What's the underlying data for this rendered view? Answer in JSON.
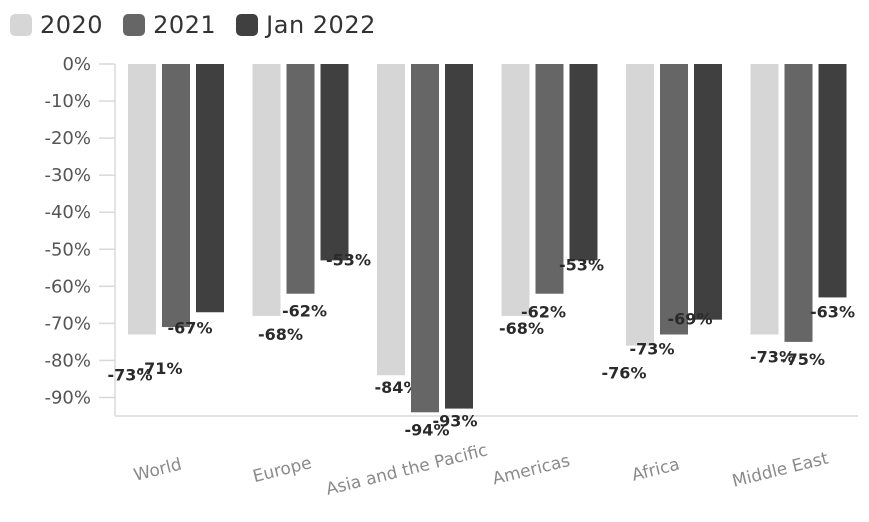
{
  "chart_data": {
    "type": "bar",
    "categories": [
      "World",
      "Europe",
      "Asia and the Pacific",
      "Americas",
      "Africa",
      "Middle East"
    ],
    "series": [
      {
        "name": "2020",
        "color": "#d6d6d6",
        "values": [
          -73,
          -68,
          -84,
          -68,
          -76,
          -73
        ]
      },
      {
        "name": "2021",
        "color": "#666666",
        "values": [
          -71,
          -62,
          -94,
          -62,
          -73,
          -75
        ]
      },
      {
        "name": "Jan 2022",
        "color": "#404040",
        "values": [
          -67,
          -53,
          -93,
          -53,
          -69,
          -63
        ]
      }
    ],
    "y_ticks": [
      "0%",
      "-10%",
      "-20%",
      "-30%",
      "-40%",
      "-50%",
      "-60%",
      "-70%",
      "-80%",
      "-90%"
    ],
    "ylim": [
      -95,
      0
    ],
    "grid": false,
    "legend_position": "top-left",
    "title": "",
    "xlabel": "",
    "ylabel": ""
  }
}
